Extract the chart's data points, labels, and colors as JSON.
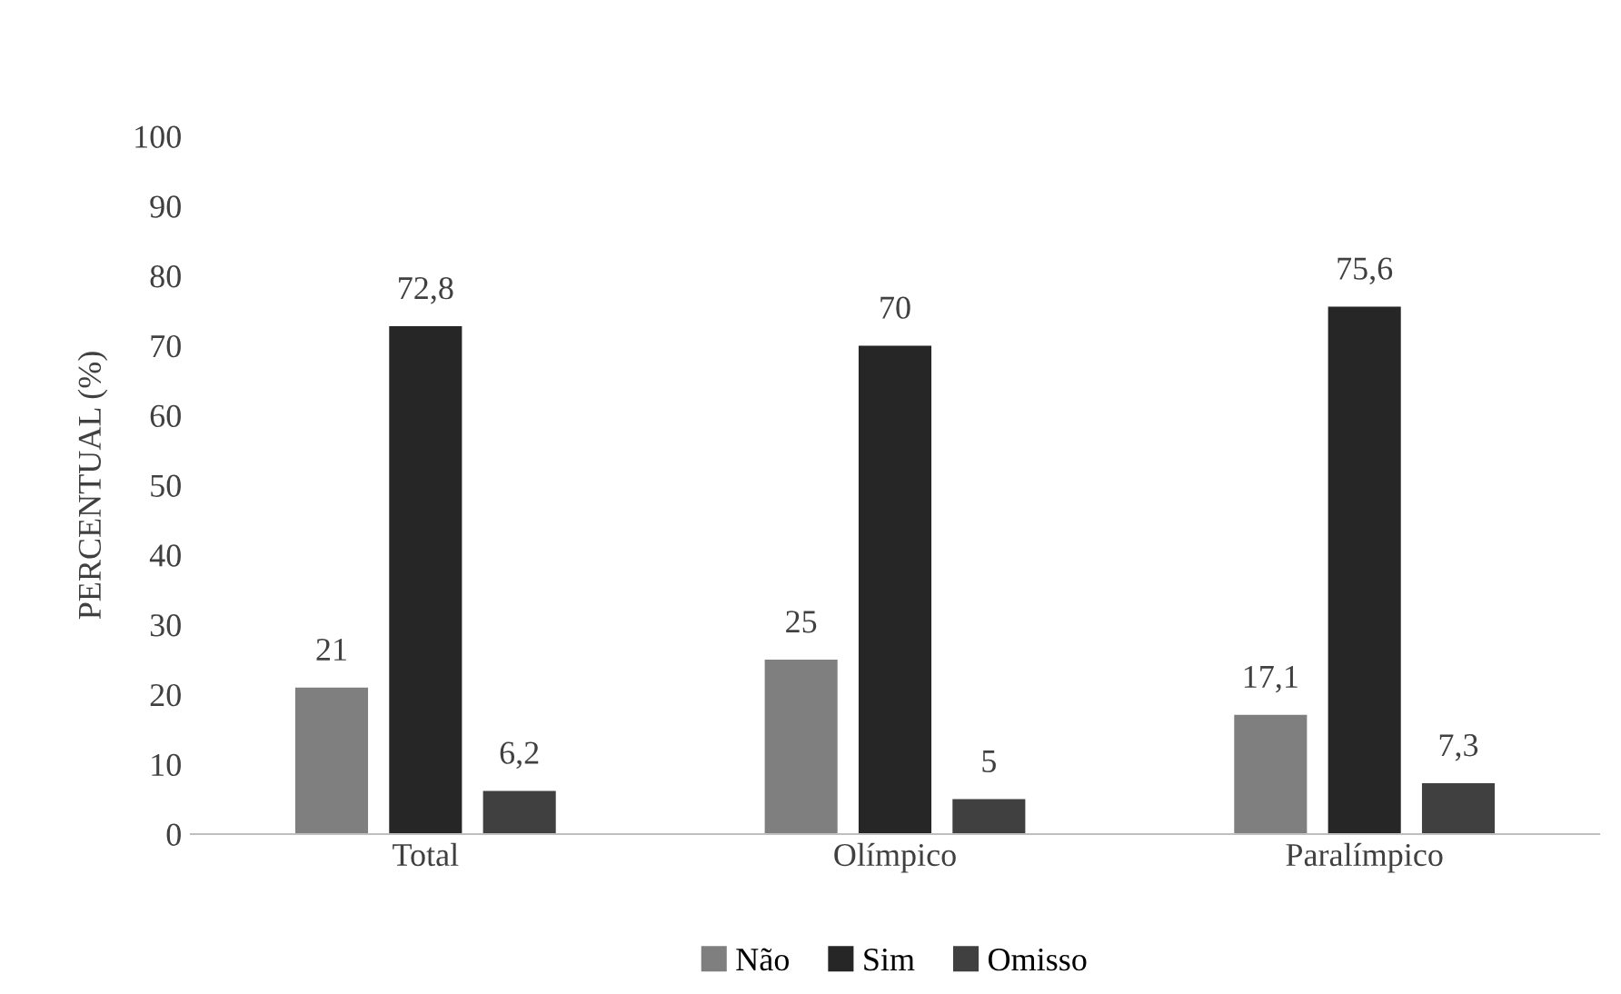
{
  "chart_data": {
    "type": "bar",
    "ylabel": "PERCENTUAL (%)",
    "categories": [
      "Total",
      "Olímpico",
      "Paralímpico"
    ],
    "series": [
      {
        "name": "Não",
        "color": "#7f7f7f",
        "values": [
          21,
          25,
          17.1
        ],
        "value_labels": [
          "21",
          "25",
          "17,1"
        ]
      },
      {
        "name": "Sim",
        "color": "#262626",
        "values": [
          72.8,
          70,
          75.6
        ],
        "value_labels": [
          "72,8",
          "70",
          "75,6"
        ]
      },
      {
        "name": "Omisso",
        "color": "#404040",
        "values": [
          6.2,
          5,
          7.3
        ],
        "value_labels": [
          "6,2",
          "5",
          "7,3"
        ]
      }
    ],
    "ylim": [
      0,
      100
    ],
    "yticks": [
      0,
      10,
      20,
      30,
      40,
      50,
      60,
      70,
      80,
      90,
      100
    ],
    "grid": false,
    "legend": "bottom"
  }
}
